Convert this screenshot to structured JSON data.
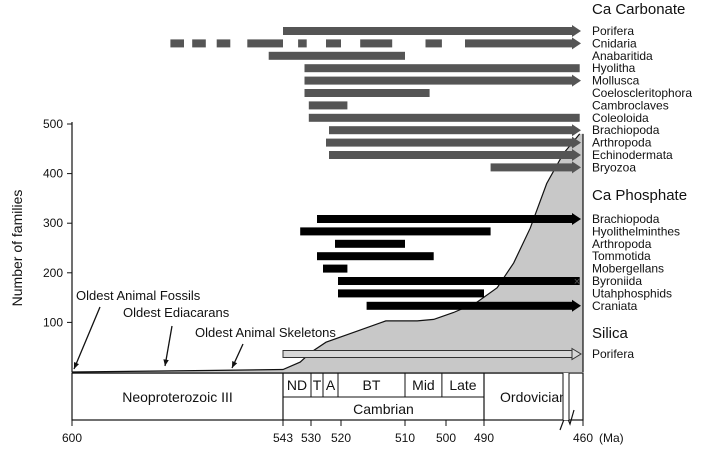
{
  "chart_data": {
    "type": "range-bar",
    "title": "",
    "ylabel": "Number of families",
    "xlabel": "(Ma)",
    "xlim": [
      600,
      460
    ],
    "x_break": "575-543",
    "ylim": [
      0,
      500
    ],
    "x_ticks": [
      600,
      543,
      530,
      520,
      510,
      500,
      490,
      460
    ],
    "y_ticks": [
      100,
      200,
      300,
      400,
      500
    ],
    "diversity_curve": [
      [
        600,
        0
      ],
      [
        560,
        3
      ],
      [
        543,
        5
      ],
      [
        535,
        20
      ],
      [
        530,
        40
      ],
      [
        525,
        60
      ],
      [
        518,
        80
      ],
      [
        513,
        103
      ],
      [
        507,
        103
      ],
      [
        503,
        106
      ],
      [
        498,
        120
      ],
      [
        492,
        140
      ],
      [
        486,
        170
      ],
      [
        481,
        220
      ],
      [
        476,
        290
      ],
      [
        471,
        380
      ],
      [
        466,
        440
      ],
      [
        461,
        480
      ]
    ],
    "annotations": [
      {
        "label": "Oldest Animal Fossils",
        "age": 600
      },
      {
        "label": "Oldest Ediacarans",
        "age": 575
      },
      {
        "label": "Oldest Animal Skeletons",
        "age": 550
      }
    ],
    "groups": [
      {
        "name": "Ca Carbonate",
        "style": "dark-grey",
        "taxa": [
          {
            "name": "Porifera",
            "bars": [
              [
                543,
                461
              ]
            ],
            "arrow": true
          },
          {
            "name": "Cnidaria",
            "bars": [
              [
                573,
                568
              ],
              [
                565,
                560
              ],
              [
                556,
                551
              ],
              [
                548,
                543
              ],
              [
                536,
                532
              ],
              [
                525,
                520
              ],
              [
                517,
                512
              ],
              [
                505,
                501
              ],
              [
                495,
                461
              ]
            ],
            "arrow": true
          },
          {
            "name": "Anabaritida",
            "bars": [
              [
                545,
                510
              ]
            ],
            "arrow": false
          },
          {
            "name": "Hyolitha",
            "bars": [
              [
                533,
                461
              ]
            ],
            "arrow": false,
            "extinct": true
          },
          {
            "name": "Mollusca",
            "bars": [
              [
                533,
                461
              ]
            ],
            "arrow": true
          },
          {
            "name": "Coeloscleritophora",
            "bars": [
              [
                533,
                504
              ]
            ],
            "arrow": false
          },
          {
            "name": "Cambroclaves",
            "bars": [
              [
                531,
                519
              ]
            ],
            "arrow": false
          },
          {
            "name": "Coleoloida",
            "bars": [
              [
                531,
                461
              ]
            ],
            "arrow": false,
            "extinct": true
          },
          {
            "name": "Brachiopoda",
            "bars": [
              [
                524,
                461
              ]
            ],
            "arrow": true
          },
          {
            "name": "Arthropoda",
            "bars": [
              [
                525,
                461
              ]
            ],
            "arrow": true
          },
          {
            "name": "Echinodermata",
            "bars": [
              [
                524,
                461
              ]
            ],
            "arrow": true
          },
          {
            "name": "Bryozoa",
            "bars": [
              [
                488,
                461
              ]
            ],
            "arrow": true
          }
        ]
      },
      {
        "name": "Ca Phosphate",
        "style": "black",
        "taxa": [
          {
            "name": "Brachiopoda",
            "bars": [
              [
                528,
                461
              ]
            ],
            "arrow": true
          },
          {
            "name": "Hyolithelminthes",
            "bars": [
              [
                535,
                488
              ]
            ],
            "arrow": false
          },
          {
            "name": "Arthropoda",
            "bars": [
              [
                522,
                510
              ]
            ],
            "arrow": false
          },
          {
            "name": "Tommotida",
            "bars": [
              [
                528,
                503
              ]
            ],
            "arrow": false
          },
          {
            "name": "Mobergellans",
            "bars": [
              [
                526,
                519
              ]
            ],
            "arrow": false
          },
          {
            "name": "Byroniida",
            "bars": [
              [
                521,
                461
              ]
            ],
            "arrow": false,
            "extinct": true
          },
          {
            "name": "Utahphosphids",
            "bars": [
              [
                521,
                490
              ]
            ],
            "arrow": false
          },
          {
            "name": "Craniata",
            "bars": [
              [
                516,
                461
              ]
            ],
            "arrow": true
          }
        ]
      },
      {
        "name": "Silica",
        "style": "hollow",
        "taxa": [
          {
            "name": "Porifera",
            "bars": [
              [
                543,
                461
              ]
            ],
            "arrow": true
          }
        ]
      }
    ],
    "periods": [
      {
        "name": "Neoproterozoic III",
        "start": 600,
        "end": 543
      },
      {
        "name": "Cambrian",
        "start": 543,
        "end": 490
      },
      {
        "name": "Ordovician",
        "start": 490,
        "end": 460
      }
    ],
    "stages": [
      {
        "name": "ND",
        "start": 543,
        "end": 530
      },
      {
        "name": "T",
        "start": 530,
        "end": 526
      },
      {
        "name": "A",
        "start": 526,
        "end": 521
      },
      {
        "name": "BT",
        "start": 521,
        "end": 510
      },
      {
        "name": "Mid",
        "start": 510,
        "end": 501
      },
      {
        "name": "Late",
        "start": 501,
        "end": 490
      }
    ]
  }
}
